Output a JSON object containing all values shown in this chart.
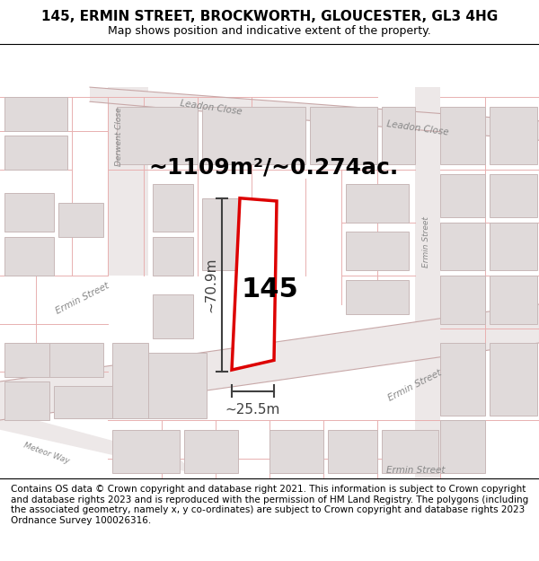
{
  "title": "145, ERMIN STREET, BROCKWORTH, GLOUCESTER, GL3 4HG",
  "subtitle": "Map shows position and indicative extent of the property.",
  "footer": "Contains OS data © Crown copyright and database right 2021. This information is subject to Crown copyright and database rights 2023 and is reproduced with the permission of HM Land Registry. The polygons (including the associated geometry, namely x, y co-ordinates) are subject to Crown copyright and database rights 2023 Ordnance Survey 100026316.",
  "area_label": "~1109m²/~0.274ac.",
  "property_label": "145",
  "dim_height": "~70.9m",
  "dim_width": "~25.5m",
  "bg_color": "#f9f6f6",
  "road_fill": "#ede8e8",
  "road_line": "#c8a8a8",
  "building_fill": "#e0dada",
  "building_ec": "#c8b8b8",
  "parcel_line": "#e8b0b0",
  "property_outline": "#dd0000",
  "property_fill": "#ffffff",
  "dim_color": "#404040",
  "road_text_color": "#888888",
  "title_fontsize": 11,
  "subtitle_fontsize": 9,
  "footer_fontsize": 7.5,
  "area_label_fontsize": 18,
  "property_label_fontsize": 22,
  "dim_fontsize": 11,
  "road_label_fontsize": 7.5
}
